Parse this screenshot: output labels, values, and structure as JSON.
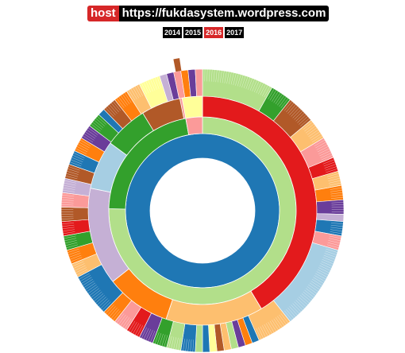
{
  "host": {
    "tag": "host",
    "url": "https://fukdasystem.wordpress.com"
  },
  "years": [
    {
      "label": "2014",
      "active": false
    },
    {
      "label": "2015",
      "active": false
    },
    {
      "label": "2016",
      "active": true
    },
    {
      "label": "2017",
      "active": false
    }
  ],
  "chart_data": {
    "type": "sunburst",
    "title": "",
    "rings": [
      {
        "level": 1,
        "segments": [
          {
            "value": 100,
            "color": "#1f77b4"
          }
        ]
      },
      {
        "level": 2,
        "segments": [
          {
            "value": 100,
            "color": "#b2df8a"
          }
        ]
      },
      {
        "level": 3,
        "segments": [
          {
            "value": 36,
            "color": "#e31a1c"
          },
          {
            "value": 12,
            "color": "#fdbf6f"
          },
          {
            "value": 8,
            "color": "#ff7f0e"
          },
          {
            "value": 12,
            "color": "#c5b0d5"
          },
          {
            "value": 6,
            "color": "#a6cee3"
          },
          {
            "value": 8,
            "color": "#33a02c"
          },
          {
            "value": 4,
            "color": "#fb9a99"
          },
          {
            "value": 1,
            "color": "#1f77b4"
          }
        ]
      },
      {
        "level": 4,
        "segments": [
          {
            "value": 10,
            "color": "#b2df8a"
          },
          {
            "value": 3,
            "color": "#33a02c"
          },
          {
            "value": 4,
            "color": "#b15928"
          },
          {
            "value": 3,
            "color": "#fdbf6f"
          },
          {
            "value": 3,
            "color": "#fb9a99"
          },
          {
            "value": 2,
            "color": "#e31a1c"
          },
          {
            "value": 2,
            "color": "#fdbf6f"
          },
          {
            "value": 2,
            "color": "#ff7f0e"
          },
          {
            "value": 2,
            "color": "#6a3d9a"
          },
          {
            "value": 1,
            "color": "#c5b0d5"
          },
          {
            "value": 2,
            "color": "#1f77b4"
          },
          {
            "value": 2,
            "color": "#fb9a99"
          },
          {
            "value": 12,
            "color": "#a6cee3"
          },
          {
            "value": 5,
            "color": "#fdbf6f"
          },
          {
            "value": 1,
            "color": "#1f77b4"
          },
          {
            "value": 1,
            "color": "#ff7f0e"
          },
          {
            "value": 1,
            "color": "#6a3d9a"
          },
          {
            "value": 1,
            "color": "#b2df8a"
          },
          {
            "value": 1,
            "color": "#fdbf6f"
          },
          {
            "value": 1,
            "color": "#b15928"
          },
          {
            "value": 1,
            "color": "#ffff99"
          },
          {
            "value": 1,
            "color": "#1f77b4"
          },
          {
            "value": 1,
            "color": "#b2df8a"
          },
          {
            "value": 2,
            "color": "#1f77b4"
          },
          {
            "value": 2,
            "color": "#b2df8a"
          },
          {
            "value": 2,
            "color": "#33a02c"
          },
          {
            "value": 2,
            "color": "#6a3d9a"
          },
          {
            "value": 2,
            "color": "#e31a1c"
          },
          {
            "value": 2,
            "color": "#fb9a99"
          },
          {
            "value": 2,
            "color": "#ff7f0e"
          },
          {
            "value": 6,
            "color": "#1f77b4"
          },
          {
            "value": 2,
            "color": "#fdbf6f"
          },
          {
            "value": 2,
            "color": "#ff7f0e"
          },
          {
            "value": 2,
            "color": "#33a02c"
          },
          {
            "value": 2,
            "color": "#e31a1c"
          },
          {
            "value": 2,
            "color": "#b15928"
          },
          {
            "value": 2,
            "color": "#fb9a99"
          },
          {
            "value": 2,
            "color": "#c5b0d5"
          },
          {
            "value": 2,
            "color": "#b15928"
          },
          {
            "value": 2,
            "color": "#1f77b4"
          },
          {
            "value": 2,
            "color": "#ff7f0e"
          },
          {
            "value": 2,
            "color": "#6a3d9a"
          },
          {
            "value": 2,
            "color": "#33a02c"
          },
          {
            "value": 1,
            "color": "#1f77b4"
          },
          {
            "value": 2,
            "color": "#b15928"
          },
          {
            "value": 2,
            "color": "#ff7f0e"
          },
          {
            "value": 2,
            "color": "#fdbf6f"
          },
          {
            "value": 3,
            "color": "#ffff99"
          },
          {
            "value": 1,
            "color": "#c5b0d5"
          },
          {
            "value": 1,
            "color": "#6a3d9a"
          },
          {
            "value": 1,
            "color": "#fb9a99"
          },
          {
            "value": 1,
            "color": "#ff7f0e"
          },
          {
            "value": 1,
            "color": "#6a3d9a"
          },
          {
            "value": 1,
            "color": "#fb9a99"
          }
        ]
      }
    ],
    "inner_arcs": [
      {
        "ring": 3,
        "value": 10,
        "color": "#33a02c",
        "note": ""
      },
      {
        "ring": 3,
        "value": 5,
        "color": "#b15928",
        "note": ""
      },
      {
        "ring": 3,
        "value": 2,
        "color": "#fb9a99",
        "note": ""
      }
    ]
  }
}
